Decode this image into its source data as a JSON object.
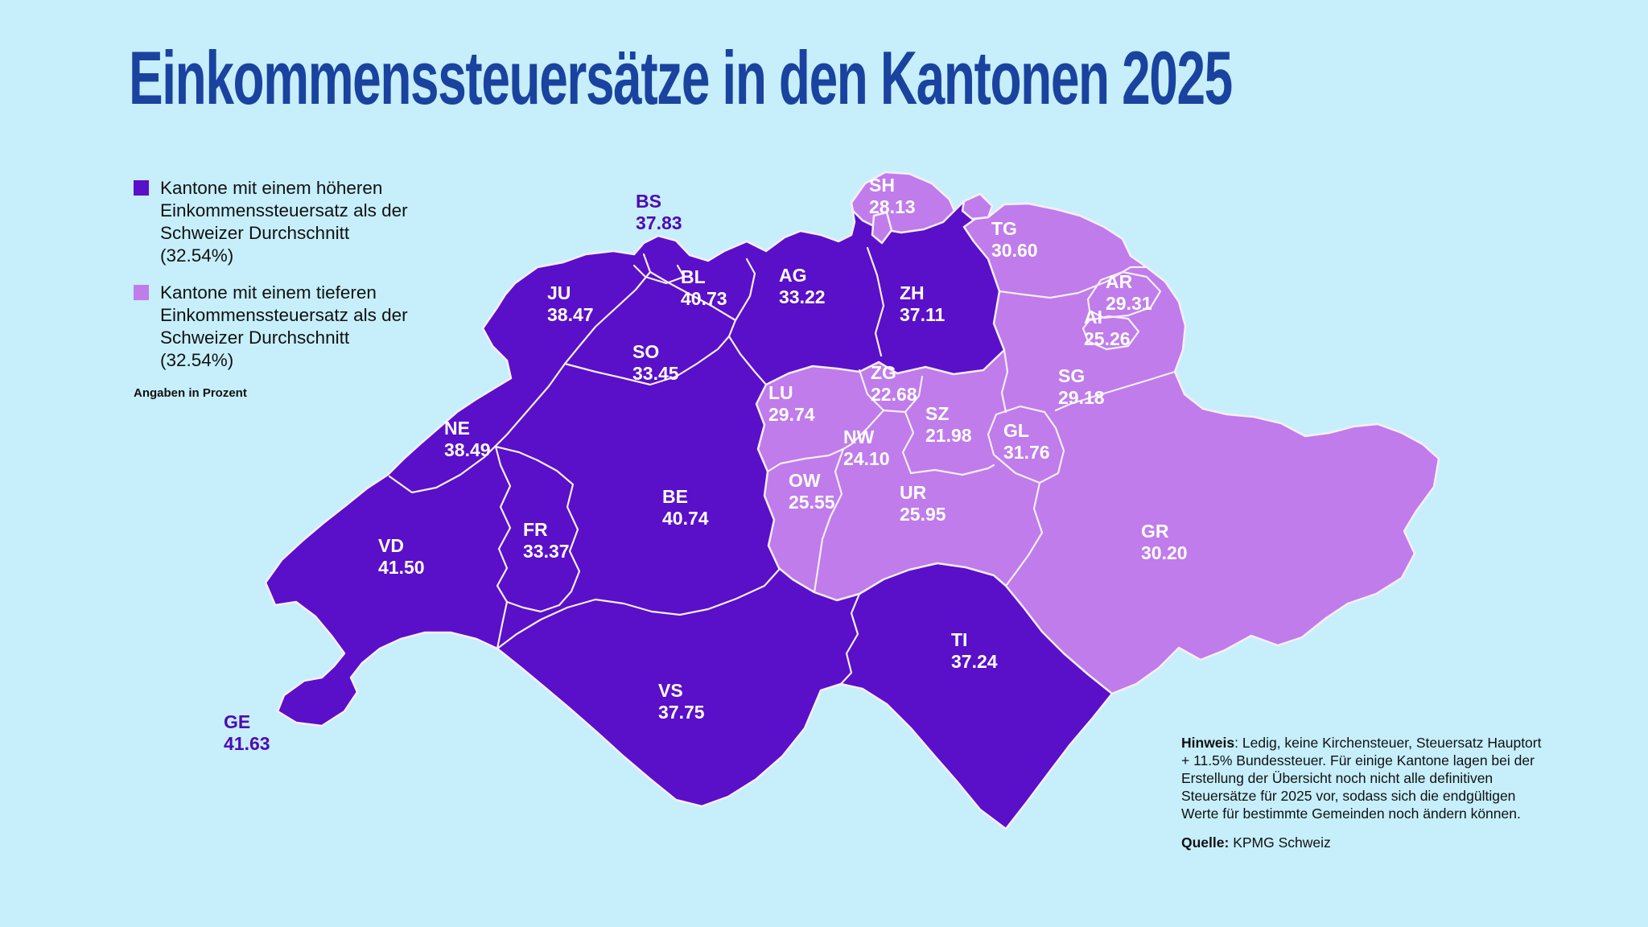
{
  "title": "Einkommenssteuersätze in den Kantonen 2025",
  "average_percent": "32.54",
  "legend": {
    "higher_label": "Kantone mit einem höheren Einkommenssteuersatz als der Schweizer Durchschnitt (32.54%)",
    "lower_label": "Kantone mit einem tieferen Einkommenssteuersatz als der Schweizer Durchschnitt (32.54%)",
    "unit_note": "Angaben in Prozent"
  },
  "notes": {
    "hinweis_label": "Hinweis",
    "hinweis_text": ": Ledig, keine Kirchensteuer, Steuersatz Hauptort + 11.5% Bundessteuer. Für einige Kantone lagen bei der Erstellung der Übersicht noch nicht alle definitiven Steuersätze für 2025 vor, sodass sich die endgültigen Werte für bestimmte Gemeinden noch ändern können.",
    "quelle_label": "Quelle:",
    "quelle_text": " KPMG Schweiz"
  },
  "colors": {
    "background": "#c6effb",
    "title": "#1a429f",
    "higher": "#5a0fc8",
    "lower": "#bf7cea",
    "border": "#f6eefc",
    "label_on_map": "#ffffff",
    "label_external": "#4f0ab5"
  },
  "chart_data": {
    "type": "choropleth-map",
    "title": "Einkommenssteuersätze in den Kantonen 2025",
    "unit": "Prozent",
    "average": 32.54,
    "cantons": [
      {
        "code": "JU",
        "value": "38.47",
        "group": "higher"
      },
      {
        "code": "BS",
        "value": "37.83",
        "group": "higher"
      },
      {
        "code": "BL",
        "value": "40.73",
        "group": "higher"
      },
      {
        "code": "SO",
        "value": "33.45",
        "group": "higher"
      },
      {
        "code": "AG",
        "value": "33.22",
        "group": "higher"
      },
      {
        "code": "ZH",
        "value": "37.11",
        "group": "higher"
      },
      {
        "code": "NE",
        "value": "38.49",
        "group": "higher"
      },
      {
        "code": "BE",
        "value": "40.74",
        "group": "higher"
      },
      {
        "code": "FR",
        "value": "33.37",
        "group": "higher"
      },
      {
        "code": "VD",
        "value": "41.50",
        "group": "higher"
      },
      {
        "code": "GE",
        "value": "41.63",
        "group": "higher"
      },
      {
        "code": "VS",
        "value": "37.75",
        "group": "higher"
      },
      {
        "code": "TI",
        "value": "37.24",
        "group": "higher"
      },
      {
        "code": "SH",
        "value": "28.13",
        "group": "lower"
      },
      {
        "code": "TG",
        "value": "30.60",
        "group": "lower"
      },
      {
        "code": "AR",
        "value": "29.31",
        "group": "lower"
      },
      {
        "code": "AI",
        "value": "25.26",
        "group": "lower"
      },
      {
        "code": "SG",
        "value": "29.18",
        "group": "lower"
      },
      {
        "code": "ZG",
        "value": "22.68",
        "group": "lower"
      },
      {
        "code": "LU",
        "value": "29.74",
        "group": "lower"
      },
      {
        "code": "SZ",
        "value": "21.98",
        "group": "lower"
      },
      {
        "code": "NW",
        "value": "24.10",
        "group": "lower"
      },
      {
        "code": "OW",
        "value": "25.55",
        "group": "lower"
      },
      {
        "code": "GL",
        "value": "31.76",
        "group": "lower"
      },
      {
        "code": "UR",
        "value": "25.95",
        "group": "lower"
      },
      {
        "code": "GR",
        "value": "30.20",
        "group": "lower"
      }
    ]
  }
}
